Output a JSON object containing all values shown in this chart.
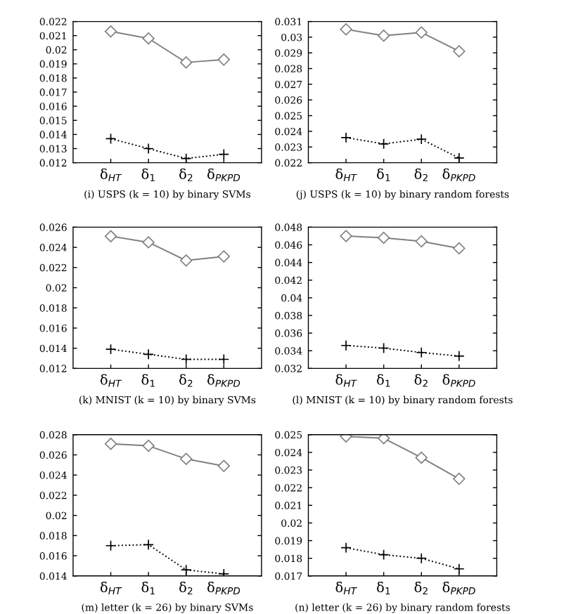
{
  "chart_data": [
    {
      "type": "line",
      "title": "(i) USPS (k = 10) by binary SVMs",
      "categories": [
        "δ$_{HT}$",
        "δ$_{1}$",
        "δ$_{2}$",
        "δ$_{PKPD}$"
      ],
      "ylim": [
        0.012,
        0.022
      ],
      "yticks": [
        0.012,
        0.013,
        0.014,
        0.015,
        0.016,
        0.017,
        0.018,
        0.019,
        0.02,
        0.021,
        0.022
      ],
      "grid": false,
      "legend": false,
      "series": [
        {
          "color": "#808080",
          "marker": "diamond",
          "line_style": "solid",
          "values": [
            0.0213,
            0.0208,
            0.0191,
            0.0193
          ]
        },
        {
          "color": "#000000",
          "marker": "cross",
          "line_style": "dotted",
          "values": [
            0.0137,
            0.013,
            0.0123,
            0.0126
          ]
        }
      ]
    },
    {
      "type": "line",
      "title": "(j) USPS (k = 10) by binary random forests",
      "categories": [
        "δ$_{HT}$",
        "δ$_{1}$",
        "δ$_{2}$",
        "δ$_{PKPD}$"
      ],
      "ylim": [
        0.022,
        0.031
      ],
      "yticks": [
        0.022,
        0.023,
        0.024,
        0.025,
        0.026,
        0.027,
        0.028,
        0.029,
        0.03,
        0.031
      ],
      "grid": false,
      "legend": false,
      "series": [
        {
          "color": "#808080",
          "marker": "diamond",
          "line_style": "solid",
          "values": [
            0.0305,
            0.0301,
            0.0303,
            0.0291
          ]
        },
        {
          "color": "#000000",
          "marker": "cross",
          "line_style": "dotted",
          "values": [
            0.0236,
            0.0232,
            0.0235,
            0.0223
          ]
        }
      ]
    },
    {
      "type": "line",
      "title": "(k) MNIST (k = 10) by binary SVMs",
      "categories": [
        "δ$_{HT}$",
        "δ$_{1}$",
        "δ$_{2}$",
        "δ$_{PKPD}$"
      ],
      "ylim": [
        0.012,
        0.026
      ],
      "yticks": [
        0.012,
        0.014,
        0.016,
        0.018,
        0.02,
        0.022,
        0.024,
        0.026
      ],
      "grid": false,
      "legend": false,
      "series": [
        {
          "color": "#808080",
          "marker": "diamond",
          "line_style": "solid",
          "values": [
            0.0251,
            0.0245,
            0.0227,
            0.0231
          ]
        },
        {
          "color": "#000000",
          "marker": "cross",
          "line_style": "dotted",
          "values": [
            0.0139,
            0.0134,
            0.0129,
            0.0129
          ]
        }
      ]
    },
    {
      "type": "line",
      "title": "(l) MNIST (k = 10) by binary random forests",
      "categories": [
        "δ$_{HT}$",
        "δ$_{1}$",
        "δ$_{2}$",
        "δ$_{PKPD}$"
      ],
      "ylim": [
        0.032,
        0.048
      ],
      "yticks": [
        0.032,
        0.034,
        0.036,
        0.038,
        0.04,
        0.042,
        0.044,
        0.046,
        0.048
      ],
      "grid": false,
      "legend": false,
      "series": [
        {
          "color": "#808080",
          "marker": "diamond",
          "line_style": "solid",
          "values": [
            0.047,
            0.0468,
            0.0464,
            0.0456
          ]
        },
        {
          "color": "#000000",
          "marker": "cross",
          "line_style": "dotted",
          "values": [
            0.0346,
            0.0343,
            0.0338,
            0.0334
          ]
        }
      ]
    },
    {
      "type": "line",
      "title": "(m) letter (k = 26) by binary SVMs",
      "categories": [
        "δ$_{HT}$",
        "δ$_{1}$",
        "δ$_{2}$",
        "δ$_{PKPD}$"
      ],
      "ylim": [
        0.014,
        0.028
      ],
      "yticks": [
        0.014,
        0.016,
        0.018,
        0.02,
        0.022,
        0.024,
        0.026,
        0.028
      ],
      "grid": false,
      "legend": false,
      "series": [
        {
          "color": "#808080",
          "marker": "diamond",
          "line_style": "solid",
          "values": [
            0.0271,
            0.0269,
            0.0256,
            0.0249
          ]
        },
        {
          "color": "#000000",
          "marker": "cross",
          "line_style": "dotted",
          "values": [
            0.017,
            0.0171,
            0.0146,
            0.0142
          ]
        }
      ]
    },
    {
      "type": "line",
      "title": "(n) letter (k = 26) by binary random forests",
      "categories": [
        "δ$_{HT}$",
        "δ$_{1}$",
        "δ$_{2}$",
        "δ$_{PKPD}$"
      ],
      "ylim": [
        0.017,
        0.025
      ],
      "yticks": [
        0.017,
        0.018,
        0.019,
        0.02,
        0.021,
        0.022,
        0.023,
        0.024,
        0.025
      ],
      "grid": false,
      "legend": false,
      "series": [
        {
          "color": "#808080",
          "marker": "diamond",
          "line_style": "solid",
          "values": [
            0.0249,
            0.0248,
            0.0237,
            0.0225
          ]
        },
        {
          "color": "#000000",
          "marker": "cross",
          "line_style": "dotted",
          "values": [
            0.0186,
            0.0182,
            0.018,
            0.0174
          ]
        }
      ]
    }
  ]
}
